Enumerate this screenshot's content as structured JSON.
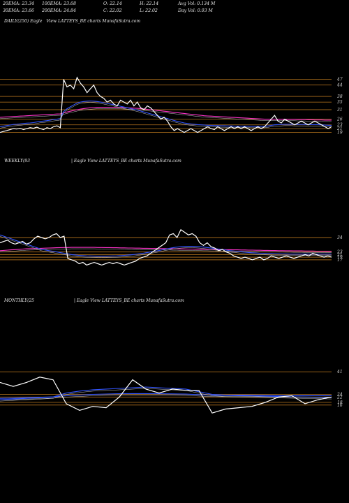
{
  "header": {
    "ema20": "20EMA: 23.34",
    "ema100": "100EMA: 23.68",
    "open": "O: 22.14",
    "high": "H: 22.14",
    "avgvol": "Avg Vol: 0.134  M",
    "ema30": "30EMA: 23.66",
    "ema200": "200EMA: 24.84",
    "close": "C: 22.02",
    "low": "L: 22.02",
    "dayvol": "Day Vol: 0.03 M"
  },
  "colors": {
    "background": "#000000",
    "price": "#ffffff",
    "ema_short": "#3355ff",
    "ema_long": "#ff33cc",
    "level_line": "#a0661a"
  },
  "chart_data": [
    {
      "type": "line",
      "panel": "daily",
      "title": "DAILY(250) Eagle",
      "subtitle": "View  LATTEYS_BE charts MunafaSutra.com",
      "level_labels": [
        "47",
        "44",
        "38",
        "35",
        "31",
        "26",
        "23",
        "21",
        "19"
      ],
      "series": [
        {
          "values": [
            19,
            19.5,
            20,
            20.5,
            21,
            20.8,
            21.2,
            20.5,
            21,
            21.5,
            21.2,
            21.8,
            21,
            20.5,
            21.5,
            21,
            22,
            22.5,
            21.5,
            47,
            43,
            44,
            42,
            48,
            45,
            43,
            40,
            42,
            44,
            40,
            38,
            37,
            35,
            36,
            34,
            33,
            36,
            35,
            34,
            36,
            33,
            35,
            32,
            31,
            33,
            32,
            30,
            28,
            26,
            27,
            25,
            22,
            20,
            21,
            20,
            19,
            20,
            21,
            20,
            19,
            20,
            21,
            22,
            21,
            20.5,
            22,
            21,
            20,
            21,
            22,
            21,
            22,
            21,
            22,
            21,
            20,
            21,
            22,
            21,
            22,
            24,
            26,
            28,
            25,
            24,
            26,
            25,
            24,
            23,
            24,
            25,
            24,
            23,
            24,
            25,
            24,
            23,
            22,
            21,
            22
          ]
        },
        {
          "values": [
            22,
            22.3,
            22.6,
            22.9,
            23.2,
            23.3,
            23.5,
            23.7,
            23.9,
            24,
            24.2,
            24.5,
            24.8,
            25,
            25.2,
            25.5,
            25.8,
            26,
            26.3,
            30,
            31.5,
            32.5,
            33.5,
            34.5,
            35,
            35.3,
            35.5,
            35.6,
            35.5,
            35.3,
            35,
            34.7,
            34.3,
            34,
            33.6,
            33.2,
            32.8,
            32.4,
            32,
            31.6,
            31.2,
            30.8,
            30.3,
            29.8,
            29.3,
            28.8,
            28.3,
            27.8,
            27.3,
            26.8,
            26.3,
            25.8,
            25.3,
            24.8,
            24.4,
            24,
            23.7,
            23.5,
            23.3,
            23.1,
            23,
            22.9,
            22.8,
            22.7,
            22.6,
            22.6,
            22.5,
            22.5,
            22.4,
            22.4,
            22.3,
            22.3,
            22.3,
            22.3,
            22.3,
            22.2,
            22.2,
            22.2,
            22.2,
            22.2,
            22.4,
            22.7,
            23,
            23.1,
            23.2,
            23.3,
            23.3,
            23.3,
            23.2,
            23.2,
            23.2,
            23.2,
            23.1,
            23.1,
            23.1,
            23.1,
            23,
            22.9,
            22.8,
            22.7
          ]
        },
        {
          "values": [
            27,
            27.1,
            27.2,
            27.3,
            27.4,
            27.5,
            27.6,
            27.7,
            27.8,
            27.9,
            28,
            28.1,
            28.2,
            28.3,
            28.4,
            28.5,
            28.6,
            28.7,
            28.8,
            29.3,
            29.8,
            30.2,
            30.6,
            31,
            31.3,
            31.6,
            31.8,
            32,
            32.1,
            32.2,
            32.3,
            32.3,
            32.3,
            32.3,
            32.3,
            32.2,
            32.2,
            32.1,
            32,
            31.9,
            31.8,
            31.7,
            31.6,
            31.4,
            31.2,
            31,
            30.8,
            30.6,
            30.4,
            30.2,
            30,
            29.8,
            29.6,
            29.4,
            29.2,
            29,
            28.8,
            28.6,
            28.4,
            28.2,
            28,
            27.8,
            27.7,
            27.6,
            27.5,
            27.4,
            27.3,
            27.2,
            27.1,
            27,
            26.9,
            26.8,
            26.7,
            26.6,
            26.5,
            26.4,
            26.3,
            26.2,
            26.1,
            26,
            26,
            26,
            26,
            26,
            26,
            26,
            25.9,
            25.9,
            25.9,
            25.8,
            25.8,
            25.8,
            25.7,
            25.7,
            25.6,
            25.6,
            25.6,
            25.5,
            25.5,
            25.5
          ]
        }
      ],
      "series_colors": [
        "#ffffff",
        "#3355ff",
        "#ff33cc"
      ],
      "ylim": [
        17,
        52
      ]
    },
    {
      "type": "line",
      "panel": "weekly",
      "title": "WEEKLY(93",
      "subtitle": "| Eagle   View  LATTEYS_BE charts MunafaSutra.com",
      "level_labels": [
        "34",
        "23",
        "21",
        "19",
        "17"
      ],
      "series": [
        {
          "values": [
            30,
            31,
            32,
            30,
            29,
            30,
            31,
            29,
            30,
            33,
            35,
            34,
            33,
            34,
            36,
            37,
            34,
            35,
            18,
            17,
            16,
            14,
            15,
            13,
            14,
            15,
            14,
            13,
            14,
            15,
            14,
            15,
            14,
            13,
            14,
            15,
            16,
            18,
            19,
            20,
            22,
            24,
            26,
            28,
            30,
            36,
            37,
            34,
            40,
            38,
            36,
            37,
            35,
            30,
            28,
            30,
            27,
            26,
            24,
            25,
            23,
            22,
            20,
            19,
            18,
            19,
            18,
            17,
            18,
            19,
            17,
            18,
            20,
            19,
            18,
            19,
            20,
            19,
            18,
            19,
            20,
            21,
            20,
            22,
            21,
            20,
            19,
            20,
            19
          ]
        },
        {
          "values": [
            36,
            35,
            34,
            33,
            32,
            31,
            30,
            29,
            28,
            27,
            26,
            25,
            24.5,
            24,
            23.5,
            23,
            22.5,
            22,
            21.5,
            21,
            20.7,
            20.4,
            20.2,
            20,
            19.9,
            19.8,
            19.7,
            19.7,
            19.7,
            19.8,
            19.9,
            20,
            20.2,
            20.4,
            20.6,
            20.9,
            21.2,
            21.6,
            22,
            22.5,
            23,
            23.5,
            24,
            24.6,
            25.2,
            25.8,
            26.3,
            26.7,
            27,
            27.2,
            27.3,
            27.3,
            27.2,
            27,
            26.7,
            26.4,
            26,
            25.6,
            25.2,
            24.8,
            24.4,
            24,
            23.7,
            23.4,
            23.1,
            22.8,
            22.6,
            22.4,
            22.2,
            22,
            21.9,
            21.8,
            21.7,
            21.6,
            21.5,
            21.4,
            21.4,
            21.3,
            21.3,
            21.3,
            21.3,
            21.3,
            21.3,
            21.3,
            21.3,
            21.3,
            21.3,
            21.3,
            21.3
          ]
        },
        {
          "values": [
            24,
            24.2,
            24.4,
            24.6,
            24.8,
            25,
            25.2,
            25.4,
            25.5,
            25.6,
            25.7,
            25.8,
            25.9,
            26,
            26.1,
            26.2,
            26.3,
            26.4,
            26.4,
            26.5,
            26.5,
            26.5,
            26.5,
            26.5,
            26.5,
            26.5,
            26.4,
            26.4,
            26.3,
            26.3,
            26.2,
            26.2,
            26.1,
            26.1,
            26,
            26,
            25.9,
            25.9,
            25.8,
            25.8,
            25.7,
            25.7,
            25.6,
            25.6,
            25.5,
            25.5,
            25.4,
            25.4,
            25.3,
            25.3,
            25.2,
            25.2,
            25.1,
            25.1,
            25,
            25,
            24.9,
            24.9,
            24.8,
            24.8,
            24.7,
            24.7,
            24.6,
            24.6,
            24.5,
            24.5,
            24.4,
            24.4,
            24.3,
            24.3,
            24.2,
            24.2,
            24.1,
            24.1,
            24,
            24,
            23.9,
            23.9,
            23.8,
            23.8,
            23.8,
            23.7,
            23.7,
            23.7,
            23.6,
            23.6,
            23.6,
            23.5,
            23.5
          ]
        }
      ],
      "series_colors": [
        "#ffffff",
        "#3355ff",
        "#ff33cc"
      ],
      "ylim": [
        10,
        50
      ]
    },
    {
      "type": "line",
      "panel": "monthly",
      "title": "MONTHLY(25",
      "subtitle": "| Eagle   View  LATTEYS_BE charts MunafaSutra.com",
      "level_labels": [
        "41",
        "24",
        "22",
        "18",
        "16"
      ],
      "series": [
        {
          "values": [
            33,
            30,
            33,
            37,
            35,
            17,
            12,
            15,
            14,
            22,
            35,
            28,
            25,
            28,
            27,
            27,
            10,
            13,
            14,
            15,
            18,
            22,
            23,
            17,
            20,
            22
          ]
        },
        {
          "values": [
            20,
            20.5,
            21,
            21.5,
            22,
            25,
            26.5,
            27.5,
            28,
            28.5,
            29,
            29.5,
            29,
            28.5,
            28,
            26,
            24,
            23.5,
            23.5,
            23.5,
            23.2,
            23,
            23,
            23,
            23,
            23
          ]
        },
        {
          "values": [
            21,
            21.2,
            21.5,
            21.8,
            22.2,
            23,
            23.5,
            24,
            24.3,
            24.5,
            24.6,
            24.6,
            24.5,
            24.4,
            24.2,
            23.8,
            23.4,
            23.2,
            23,
            22.8,
            22.6,
            22.4,
            22.2,
            22,
            21.8,
            21.6
          ]
        }
      ],
      "series_colors": [
        "#ffffff",
        "#3355ff",
        "#3355ff"
      ],
      "ylim": [
        8,
        50
      ]
    }
  ]
}
